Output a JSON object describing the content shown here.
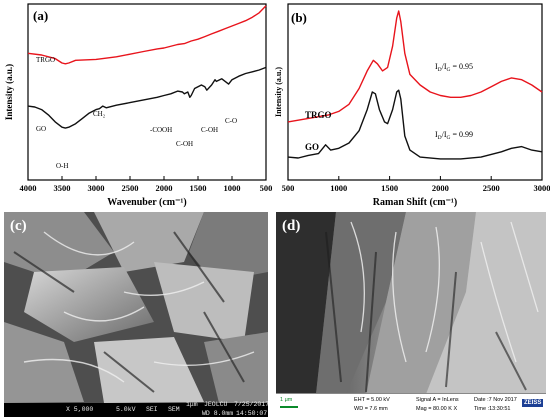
{
  "chart_data": [
    {
      "type": "line",
      "panel_label": "(a)",
      "xlabel": "Wavenuber (cm⁻¹)",
      "ylabel": "Intensity (a.u.)",
      "xlim": [
        4000,
        500
      ],
      "x_ticks": [
        "4000",
        "3500",
        "3000",
        "2500",
        "2000",
        "1500",
        "1000",
        "500"
      ],
      "series": [
        {
          "name": "TRGO",
          "color": "#e8141c",
          "points": [
            [
              4000,
              0.72
            ],
            [
              3800,
              0.71
            ],
            [
              3600,
              0.69
            ],
            [
              3500,
              0.665
            ],
            [
              3450,
              0.66
            ],
            [
              3400,
              0.665
            ],
            [
              3300,
              0.68
            ],
            [
              3000,
              0.685
            ],
            [
              2900,
              0.69
            ],
            [
              2700,
              0.7
            ],
            [
              2500,
              0.715
            ],
            [
              2300,
              0.73
            ],
            [
              2100,
              0.745
            ],
            [
              2000,
              0.75
            ],
            [
              1800,
              0.77
            ],
            [
              1700,
              0.775
            ],
            [
              1600,
              0.79
            ],
            [
              1500,
              0.8
            ],
            [
              1400,
              0.815
            ],
            [
              1300,
              0.83
            ],
            [
              1200,
              0.845
            ],
            [
              1100,
              0.86
            ],
            [
              1000,
              0.875
            ],
            [
              900,
              0.89
            ],
            [
              800,
              0.905
            ],
            [
              700,
              0.925
            ],
            [
              600,
              0.95
            ],
            [
              500,
              0.99
            ]
          ]
        },
        {
          "name": "GO",
          "color": "#111111",
          "points": [
            [
              4000,
              0.42
            ],
            [
              3900,
              0.415
            ],
            [
              3800,
              0.4
            ],
            [
              3700,
              0.37
            ],
            [
              3600,
              0.33
            ],
            [
              3500,
              0.3
            ],
            [
              3450,
              0.295
            ],
            [
              3400,
              0.3
            ],
            [
              3300,
              0.32
            ],
            [
              3200,
              0.35
            ],
            [
              3100,
              0.38
            ],
            [
              3000,
              0.4
            ],
            [
              2950,
              0.405
            ],
            [
              2900,
              0.42
            ],
            [
              2850,
              0.41
            ],
            [
              2700,
              0.425
            ],
            [
              2500,
              0.44
            ],
            [
              2300,
              0.455
            ],
            [
              2100,
              0.47
            ],
            [
              2000,
              0.48
            ],
            [
              1900,
              0.49
            ],
            [
              1800,
              0.505
            ],
            [
              1730,
              0.5
            ],
            [
              1700,
              0.49
            ],
            [
              1650,
              0.5
            ],
            [
              1620,
              0.47
            ],
            [
              1600,
              0.48
            ],
            [
              1550,
              0.52
            ],
            [
              1450,
              0.54
            ],
            [
              1400,
              0.53
            ],
            [
              1370,
              0.51
            ],
            [
              1300,
              0.54
            ],
            [
              1250,
              0.57
            ],
            [
              1230,
              0.56
            ],
            [
              1150,
              0.575
            ],
            [
              1100,
              0.56
            ],
            [
              1050,
              0.545
            ],
            [
              1000,
              0.57
            ],
            [
              900,
              0.59
            ],
            [
              800,
              0.605
            ],
            [
              700,
              0.615
            ],
            [
              600,
              0.625
            ],
            [
              500,
              0.64
            ]
          ]
        }
      ],
      "series_labels": [
        "TRGO",
        "GO"
      ],
      "annotations": [
        "O-H",
        "CH₂",
        "-COOH",
        "C-OH",
        "C-OH",
        "C-O"
      ]
    },
    {
      "type": "line",
      "panel_label": "(b)",
      "xlabel": "Raman Shift (cm⁻¹)",
      "ylabel": "Intensity (a.u.)",
      "xlim": [
        500,
        3000
      ],
      "x_ticks": [
        "500",
        "1000",
        "1500",
        "2000",
        "2500",
        "3000"
      ],
      "series": [
        {
          "name": "TRGO",
          "color": "#e8141c",
          "points": [
            [
              500,
              0.33
            ],
            [
              700,
              0.35
            ],
            [
              900,
              0.37
            ],
            [
              1000,
              0.39
            ],
            [
              1100,
              0.43
            ],
            [
              1200,
              0.52
            ],
            [
              1280,
              0.62
            ],
            [
              1340,
              0.68
            ],
            [
              1380,
              0.66
            ],
            [
              1430,
              0.62
            ],
            [
              1480,
              0.64
            ],
            [
              1530,
              0.76
            ],
            [
              1570,
              0.92
            ],
            [
              1590,
              0.96
            ],
            [
              1610,
              0.9
            ],
            [
              1650,
              0.72
            ],
            [
              1700,
              0.6
            ],
            [
              1800,
              0.54
            ],
            [
              1900,
              0.5
            ],
            [
              2000,
              0.48
            ],
            [
              2100,
              0.47
            ],
            [
              2200,
              0.47
            ],
            [
              2300,
              0.48
            ],
            [
              2400,
              0.5
            ],
            [
              2500,
              0.53
            ],
            [
              2600,
              0.56
            ],
            [
              2700,
              0.58
            ],
            [
              2800,
              0.57
            ],
            [
              2900,
              0.54
            ],
            [
              3000,
              0.5
            ]
          ]
        },
        {
          "name": "GO",
          "color": "#111111",
          "points": [
            [
              500,
              0.13
            ],
            [
              600,
              0.125
            ],
            [
              700,
              0.14
            ],
            [
              800,
              0.15
            ],
            [
              870,
              0.2
            ],
            [
              920,
              0.17
            ],
            [
              1000,
              0.18
            ],
            [
              1100,
              0.21
            ],
            [
              1200,
              0.28
            ],
            [
              1280,
              0.4
            ],
            [
              1330,
              0.5
            ],
            [
              1360,
              0.49
            ],
            [
              1400,
              0.4
            ],
            [
              1450,
              0.33
            ],
            [
              1480,
              0.32
            ],
            [
              1530,
              0.4
            ],
            [
              1570,
              0.5
            ],
            [
              1590,
              0.51
            ],
            [
              1610,
              0.46
            ],
            [
              1650,
              0.25
            ],
            [
              1700,
              0.17
            ],
            [
              1800,
              0.13
            ],
            [
              2000,
              0.12
            ],
            [
              2200,
              0.12
            ],
            [
              2400,
              0.13
            ],
            [
              2600,
              0.16
            ],
            [
              2700,
              0.18
            ],
            [
              2800,
              0.19
            ],
            [
              2900,
              0.17
            ],
            [
              3000,
              0.16
            ]
          ]
        }
      ],
      "series_labels": [
        "TRGO",
        "GO"
      ],
      "annotations": [
        "I_D/I_G = 0.95",
        "I_D/I_G = 0.99"
      ]
    }
  ],
  "micrographs": {
    "c": {
      "label": "(c)",
      "infobar": [
        "X 5,000",
        "5.0kV",
        "SEI",
        "SEM",
        "1μm",
        "JEOLCU",
        "WD 8.0mm",
        "7/25/2017",
        "14:50:07"
      ]
    },
    "d": {
      "label": "(d)",
      "scale": "1 μm",
      "eht": "EHT = 5.00 kV",
      "wd": "WD = 7.6 mm",
      "signal": "Signal A = InLens",
      "mag": "Mag = 80.00 K X",
      "date": "Date :7 Nov 2017",
      "time": "Time :13:30:51",
      "brand": "ZEISS"
    }
  }
}
